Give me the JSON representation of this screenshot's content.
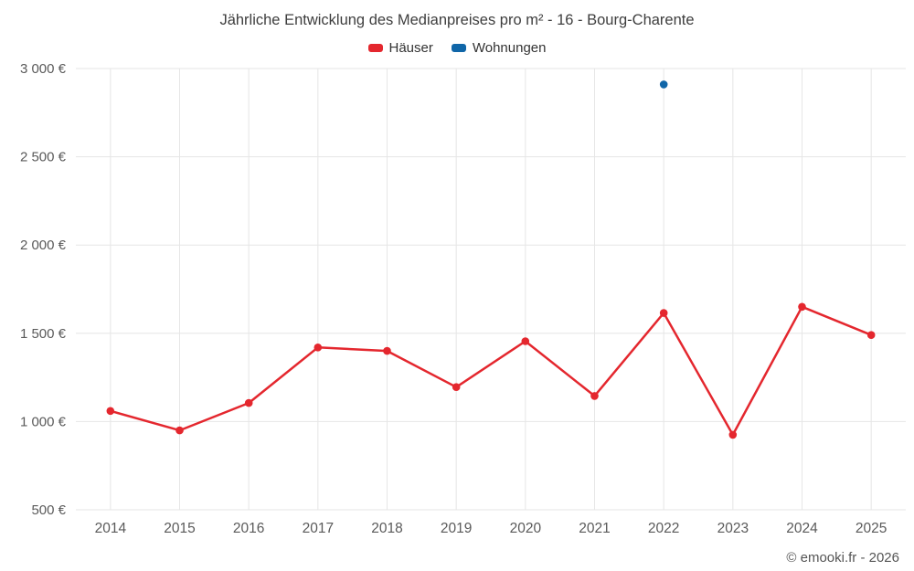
{
  "title": "Jährliche Entwicklung des Medianpreises pro m² - 16 - Bourg-Charente",
  "footer": {
    "copyright": "© emooki.fr - 2026"
  },
  "legend": [
    {
      "label": "Häuser",
      "color": "#e4272e"
    },
    {
      "label": "Wohnungen",
      "color": "#1066a8"
    }
  ],
  "colors": {
    "grid": "#e6e6e6",
    "axis_text": "#5a5a5a",
    "title_text": "#3e3e3e"
  },
  "chart_data": {
    "type": "line",
    "title": "Jährliche Entwicklung des Medianpreises pro m² - 16 - Bourg-Charente",
    "categories": [
      "2014",
      "2015",
      "2016",
      "2017",
      "2018",
      "2019",
      "2020",
      "2021",
      "2022",
      "2023",
      "2024",
      "2025"
    ],
    "series": [
      {
        "name": "Häuser",
        "color": "#e4272e",
        "values": [
          1060,
          950,
          1105,
          1420,
          1400,
          1195,
          1455,
          1145,
          1615,
          925,
          1650,
          1490
        ]
      },
      {
        "name": "Wohnungen",
        "color": "#1066a8",
        "values": [
          null,
          null,
          null,
          null,
          null,
          null,
          null,
          null,
          2910,
          null,
          null,
          null
        ]
      }
    ],
    "xlabel": "",
    "ylabel": "",
    "ylim": [
      500,
      3000
    ],
    "ytick_step": 500,
    "ytick_suffix": " €",
    "grid": true,
    "legend_position": "top"
  }
}
